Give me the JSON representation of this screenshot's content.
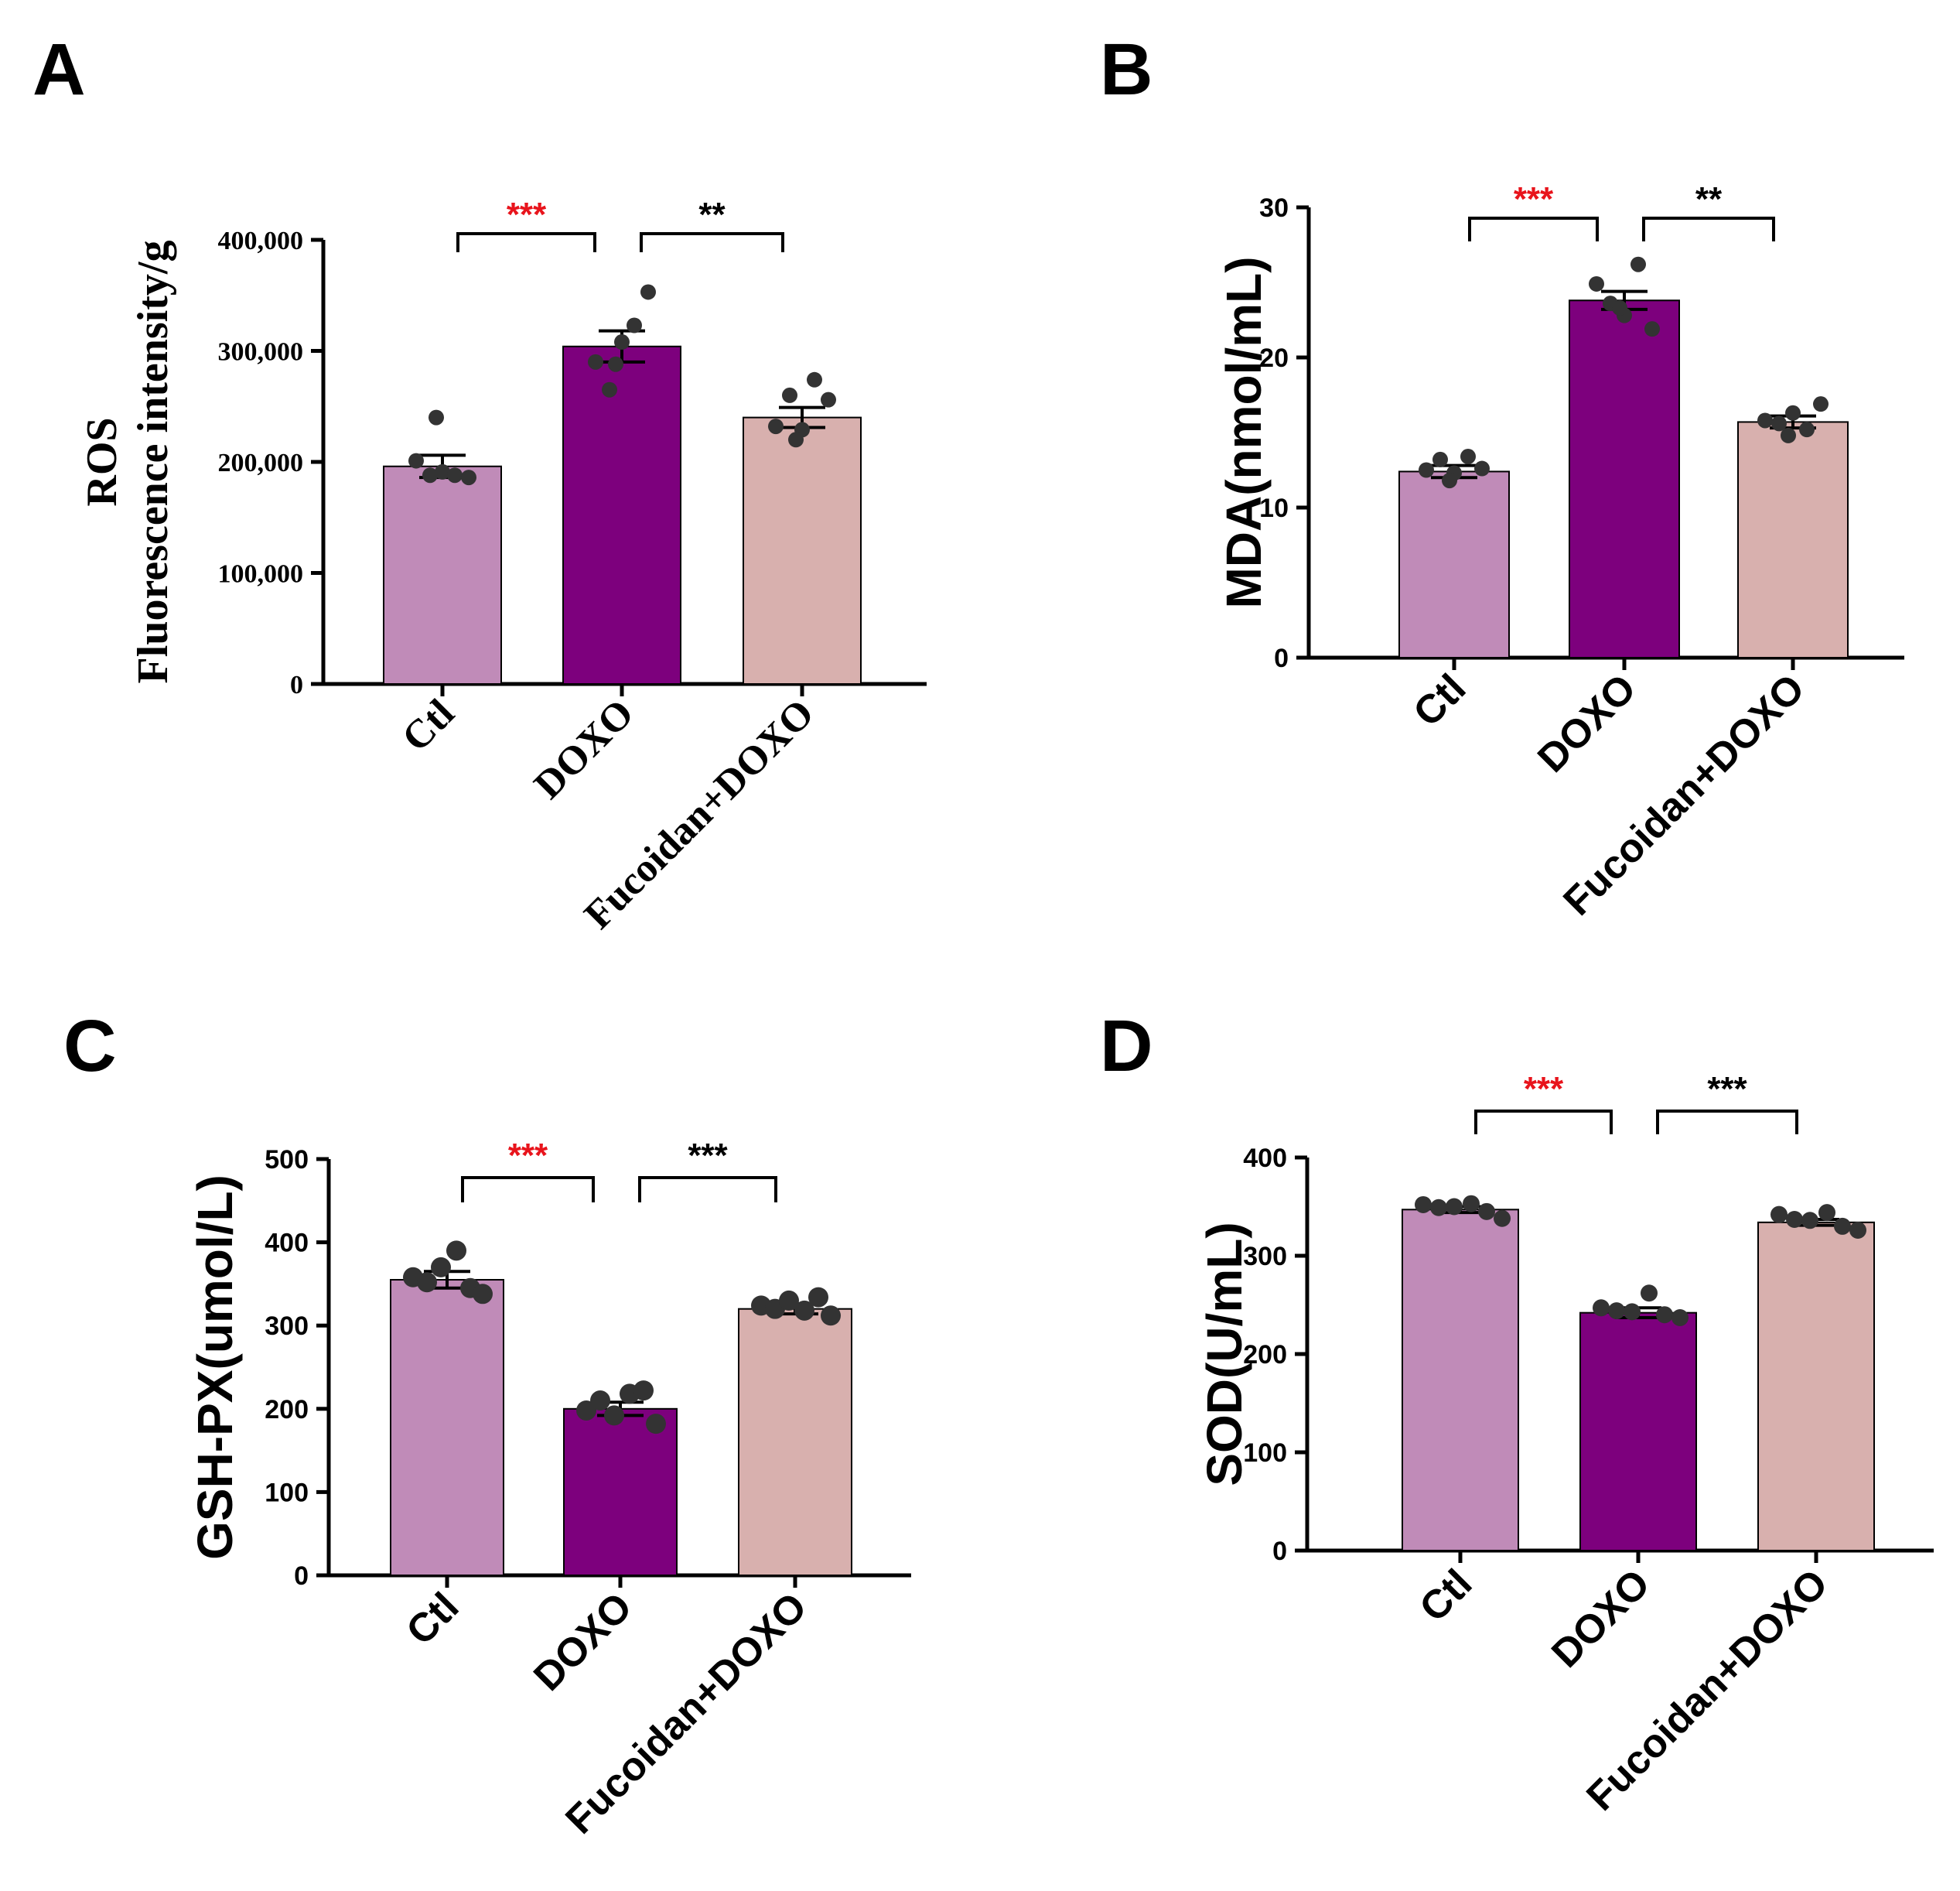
{
  "colors": {
    "ctl": "#c08bb8",
    "doxo": "#7d007d",
    "fucoidan": "#d8b0ae",
    "sig_red": "#e8141c",
    "sig_black": "#000000"
  },
  "chart_data": [
    {
      "panel": "A",
      "type": "bar",
      "font": "serif",
      "ylabel_lines": [
        "ROS",
        "Fluorescence intensity/g"
      ],
      "categories": [
        "Ctl",
        "DOXO",
        "Fucoidan+DOXO"
      ],
      "values": [
        196000,
        304000,
        240000
      ],
      "errors": [
        10000,
        14000,
        9000
      ],
      "points": [
        [
          201000,
          188000,
          191000,
          188000,
          186000,
          240000
        ],
        [
          290000,
          265000,
          308000,
          323000,
          353000,
          288000
        ],
        [
          232000,
          260000,
          229000,
          274000,
          256000,
          220000
        ]
      ],
      "ylim": [
        0,
        400000
      ],
      "yticks": [
        0,
        100000,
        200000,
        300000,
        400000
      ],
      "ytick_labels": [
        "0",
        "100,000",
        "200,000",
        "300,000",
        "400,000"
      ],
      "significance": [
        {
          "from": 0,
          "to": 1,
          "label": "***",
          "color": "red"
        },
        {
          "from": 1,
          "to": 2,
          "label": "**",
          "color": "black"
        }
      ]
    },
    {
      "panel": "B",
      "type": "bar",
      "font": "sans",
      "ylabel_lines": [
        "MDA(nmol/mL)"
      ],
      "categories": [
        "Ctl",
        "DOXO",
        "Fucoidan+DOXO"
      ],
      "values": [
        12.4,
        23.8,
        15.7
      ],
      "errors": [
        0.4,
        0.6,
        0.4
      ],
      "points": [
        [
          12.5,
          13.2,
          12.3,
          13.4,
          12.6,
          11.8
        ],
        [
          24.9,
          23.6,
          22.8,
          26.2,
          21.9,
          23.3
        ],
        [
          15.8,
          15.6,
          16.3,
          15.2,
          16.9,
          14.8
        ]
      ],
      "ylim": [
        0,
        30
      ],
      "yticks": [
        0,
        10,
        20,
        30
      ],
      "ytick_labels": [
        "0",
        "10",
        "20",
        "30"
      ],
      "significance": [
        {
          "from": 0,
          "to": 1,
          "label": "***",
          "color": "red"
        },
        {
          "from": 1,
          "to": 2,
          "label": "**",
          "color": "black"
        }
      ]
    },
    {
      "panel": "C",
      "type": "bar",
      "font": "sans",
      "ylabel_lines": [
        "GSH-PX(umol/L)"
      ],
      "categories": [
        "Ctl",
        "DOXO",
        "Fucoidan+DOXO"
      ],
      "values": [
        355,
        200,
        320
      ],
      "errors": [
        10,
        8,
        6
      ],
      "points": [
        [
          358,
          352,
          370,
          390,
          345,
          338
        ],
        [
          198,
          210,
          192,
          218,
          222,
          182
        ],
        [
          324,
          320,
          330,
          318,
          334,
          312
        ]
      ],
      "ylim": [
        0,
        500
      ],
      "yticks": [
        0,
        100,
        200,
        300,
        400,
        500
      ],
      "ytick_labels": [
        "0",
        "100",
        "200",
        "300",
        "400",
        "500"
      ],
      "significance": [
        {
          "from": 0,
          "to": 1,
          "label": "***",
          "color": "red"
        },
        {
          "from": 1,
          "to": 2,
          "label": "***",
          "color": "black"
        }
      ]
    },
    {
      "panel": "D",
      "type": "bar",
      "font": "sans",
      "ylabel_lines": [
        "SOD(U/mL)"
      ],
      "categories": [
        "Ctl",
        "DOXO",
        "Fucoidan+DOXO"
      ],
      "values": [
        347,
        242,
        334
      ],
      "errors": [
        3,
        5,
        3
      ],
      "points": [
        [
          352,
          349,
          350,
          353,
          345,
          338
        ],
        [
          247,
          244,
          243,
          262,
          240,
          237
        ],
        [
          342,
          337,
          336,
          344,
          330,
          326
        ]
      ],
      "ylim": [
        0,
        400
      ],
      "yticks": [
        0,
        100,
        200,
        300,
        400
      ],
      "ytick_labels": [
        "0",
        "100",
        "200",
        "300",
        "400"
      ],
      "significance": [
        {
          "from": 0,
          "to": 1,
          "label": "***",
          "color": "red"
        },
        {
          "from": 1,
          "to": 2,
          "label": "***",
          "color": "black"
        }
      ]
    }
  ]
}
